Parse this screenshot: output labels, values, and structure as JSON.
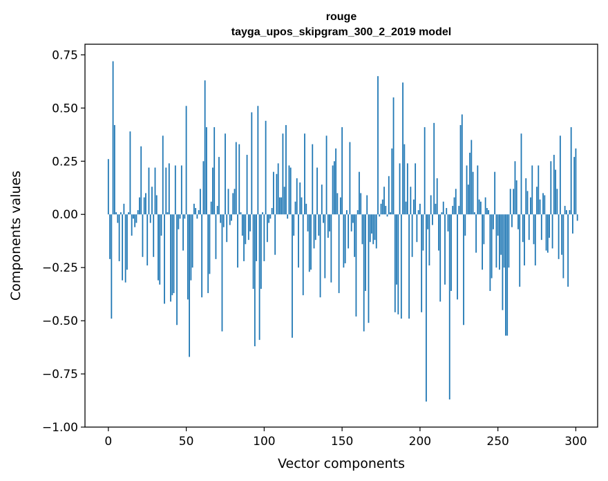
{
  "chart_data": {
    "type": "bar",
    "title": "rouge",
    "subtitle": "tayga_upos_skipgram_300_2_2019 model",
    "xlabel": "Vector components",
    "ylabel": "Components values",
    "xlim": [
      -15,
      314
    ],
    "ylim": [
      -1.0,
      0.8
    ],
    "xticks": [
      0,
      50,
      100,
      150,
      200,
      250,
      300
    ],
    "xtick_labels": [
      "0",
      "50",
      "100",
      "150",
      "200",
      "250",
      "300"
    ],
    "yticks": [
      -1.0,
      -0.75,
      -0.5,
      -0.25,
      0.0,
      0.25,
      0.5,
      0.75
    ],
    "ytick_labels": [
      "−1.00",
      "−0.75",
      "−0.50",
      "−0.25",
      "0.00",
      "0.25",
      "0.50",
      "0.75"
    ],
    "grid": false,
    "bar_color": "#1f77b4",
    "x": "indices 0..299",
    "values": [
      0.26,
      -0.21,
      -0.49,
      0.72,
      0.42,
      0.01,
      -0.04,
      -0.22,
      0.01,
      -0.31,
      0.05,
      -0.32,
      -0.26,
      0.01,
      0.39,
      -0.1,
      -0.02,
      -0.06,
      -0.04,
      0.02,
      0.08,
      0.32,
      -0.2,
      0.08,
      0.1,
      -0.24,
      0.22,
      -0.04,
      0.13,
      -0.2,
      0.22,
      0.09,
      -0.31,
      -0.33,
      -0.1,
      0.37,
      -0.42,
      0.22,
      0.01,
      0.24,
      -0.41,
      -0.38,
      -0.37,
      0.23,
      -0.52,
      -0.07,
      -0.02,
      0.23,
      -0.17,
      -0.02,
      0.51,
      -0.4,
      -0.67,
      -0.31,
      -0.25,
      0.05,
      0.03,
      -0.02,
      0.02,
      0.12,
      -0.39,
      0.25,
      0.63,
      0.41,
      -0.37,
      -0.28,
      0.06,
      0.22,
      0.41,
      -0.21,
      0.04,
      0.27,
      -0.04,
      -0.55,
      -0.06,
      0.38,
      -0.13,
      0.12,
      -0.05,
      -0.03,
      0.1,
      0.12,
      0.34,
      -0.25,
      0.33,
      0.01,
      -0.1,
      -0.22,
      -0.14,
      0.28,
      -0.12,
      -0.08,
      0.48,
      -0.35,
      -0.62,
      -0.22,
      0.51,
      -0.59,
      -0.35,
      0.01,
      -0.22,
      0.44,
      -0.13,
      -0.04,
      -0.02,
      0.03,
      0.2,
      -0.19,
      0.19,
      0.24,
      0.08,
      0.08,
      0.38,
      0.13,
      0.42,
      -0.02,
      0.23,
      0.22,
      -0.58,
      -0.1,
      0.06,
      0.17,
      -0.25,
      0.15,
      0.08,
      -0.38,
      0.38,
      0.05,
      -0.08,
      -0.27,
      -0.26,
      0.33,
      -0.16,
      -0.12,
      0.22,
      -0.1,
      -0.39,
      0.14,
      -0.04,
      -0.3,
      0.37,
      -0.11,
      -0.08,
      -0.32,
      0.23,
      0.25,
      0.31,
      0.1,
      -0.37,
      0.08,
      0.41,
      -0.25,
      -0.23,
      0.02,
      -0.16,
      0.34,
      -0.08,
      -0.04,
      -0.2,
      -0.48,
      0.02,
      0.2,
      0.1,
      -0.14,
      -0.55,
      -0.36,
      0.09,
      -0.51,
      -0.13,
      -0.09,
      -0.14,
      -0.12,
      -0.16,
      0.65,
      -0.01,
      0.05,
      0.07,
      0.13,
      0.04,
      -0.01,
      0.18,
      0.01,
      0.31,
      0.55,
      -0.46,
      -0.33,
      -0.47,
      0.24,
      -0.49,
      0.62,
      0.33,
      0.06,
      0.24,
      -0.49,
      0.13,
      -0.2,
      0.07,
      0.24,
      -0.13,
      0.02,
      0.05,
      -0.46,
      -0.17,
      0.41,
      -0.88,
      -0.07,
      -0.24,
      0.09,
      -0.05,
      0.43,
      0.05,
      0.17,
      -0.17,
      -0.41,
      0.01,
      0.06,
      -0.33,
      0.03,
      -0.08,
      -0.87,
      -0.36,
      0.04,
      0.08,
      0.12,
      -0.4,
      0.04,
      0.42,
      0.47,
      -0.52,
      -0.1,
      0.23,
      0.14,
      0.29,
      0.35,
      0.2,
      0.01,
      -0.18,
      0.23,
      0.07,
      0.06,
      -0.26,
      -0.14,
      0.08,
      0.03,
      0.02,
      -0.36,
      -0.3,
      -0.07,
      0.2,
      -0.25,
      -0.1,
      -0.26,
      -0.19,
      -0.45,
      -0.25,
      -0.57,
      -0.57,
      -0.25,
      0.12,
      -0.06,
      0.12,
      0.25,
      0.16,
      -0.07,
      -0.34,
      0.38,
      -0.13,
      -0.24,
      0.17,
      0.11,
      -0.12,
      0.08,
      0.23,
      -0.14,
      -0.24,
      0.13,
      0.23,
      0.07,
      -0.12,
      0.1,
      0.09,
      -0.17,
      -0.18,
      -0.11,
      0.25,
      -0.16,
      0.28,
      0.21,
      0.12,
      -0.21,
      0.37,
      -0.19,
      -0.3,
      0.04,
      0.02,
      -0.34,
      0.02,
      0.41,
      -0.09,
      0.27,
      0.31,
      -0.03
    ]
  }
}
